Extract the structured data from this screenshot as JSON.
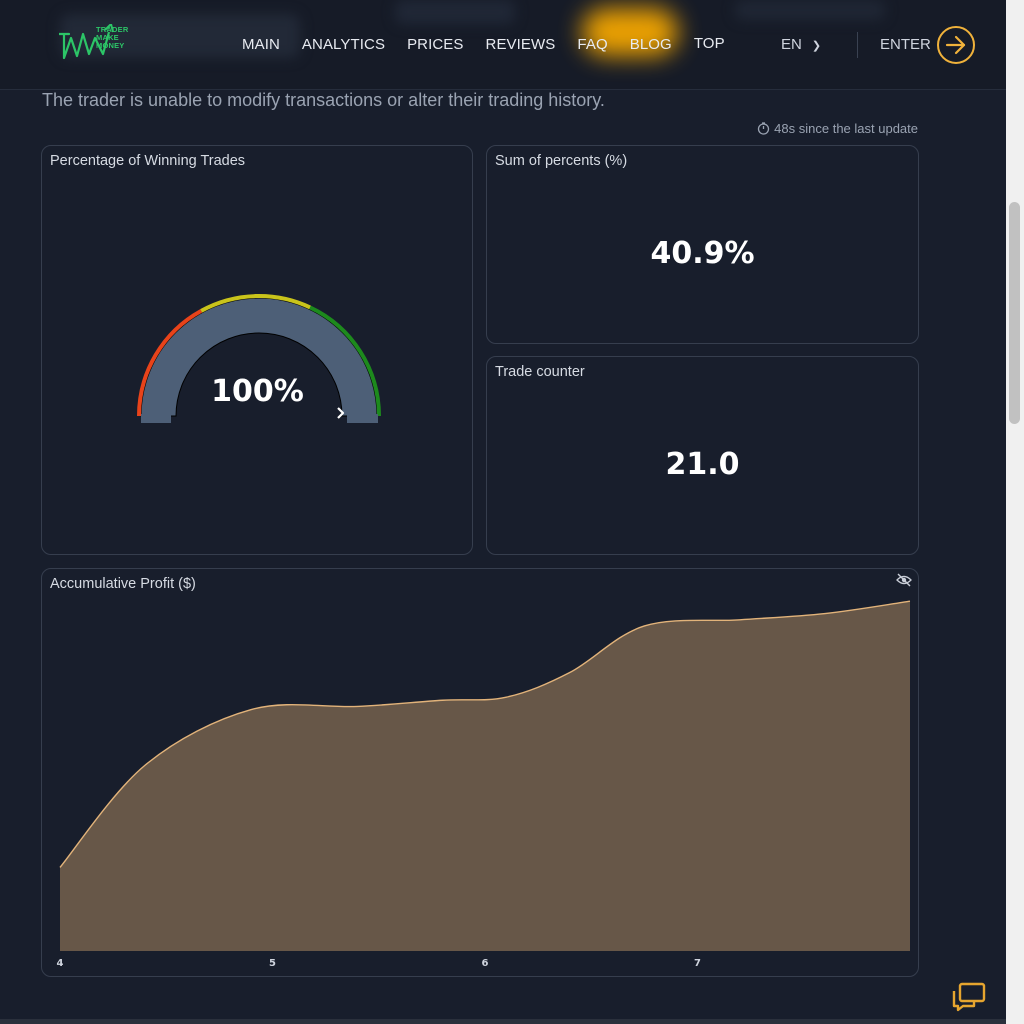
{
  "header": {
    "logo_lines": [
      "TRADER",
      "MAKE",
      "MONEY"
    ],
    "nav": [
      "MAIN",
      "ANALYTICS",
      "PRICES",
      "REVIEWS",
      "FAQ",
      "BLOG",
      "TOP"
    ],
    "language": "EN",
    "enter_label": "ENTER",
    "accent_color": "#f0b23b"
  },
  "subtitle": "The trader is unable to modify transactions or alter their trading history.",
  "update_text": "48s since the last update",
  "cards": {
    "winning": {
      "title": "Percentage of Winning Trades",
      "value": "100%",
      "percent": 100
    },
    "sum": {
      "title": "Sum of percents (%)",
      "value": "40.9%"
    },
    "counter": {
      "title": "Trade counter",
      "value": "21.0"
    },
    "profit": {
      "title": "Accumulative Profit ($)"
    }
  },
  "chart_data": {
    "type": "area",
    "title": "Accumulative Profit ($)",
    "x_ticks": [
      "4",
      "5",
      "6",
      "7"
    ],
    "x": [
      4.0,
      4.4,
      4.9,
      5.4,
      5.8,
      6.1,
      6.4,
      6.75,
      7.2,
      7.6,
      8.0
    ],
    "y": [
      0.27,
      0.6,
      0.78,
      0.79,
      0.81,
      0.82,
      0.9,
      1.05,
      1.07,
      1.09,
      1.13
    ],
    "xlim": [
      4.0,
      8.0
    ],
    "ylim": [
      0.0,
      1.15
    ],
    "fill_color": "#675748",
    "line_color": "#e2b37a",
    "grid": false
  },
  "gauge_colors": {
    "low": "#e8431a",
    "mid": "#c9c41b",
    "high": "#1d8a1d",
    "track": "#4d5f77"
  }
}
